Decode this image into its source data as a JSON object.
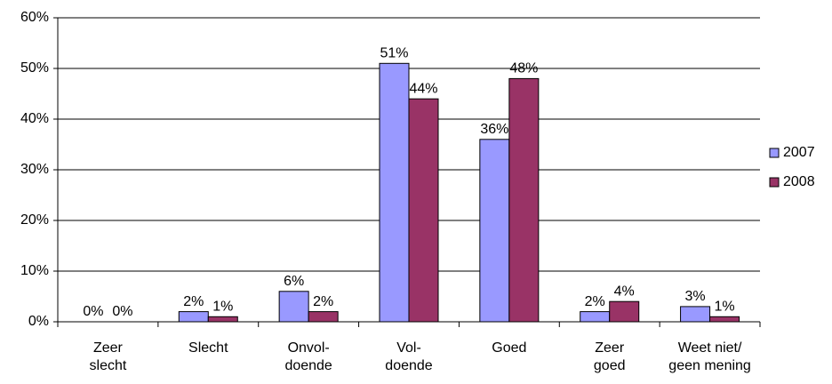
{
  "chart_data": {
    "type": "bar",
    "categories": [
      "Zeer\nslecht",
      "Slecht",
      "Onvol-\ndoende",
      "Vol-\ndoende",
      "Goed",
      "Zeer\ngoed",
      "Weet niet/\ngeen mening"
    ],
    "series": [
      {
        "name": "2007",
        "color": "#9999ff",
        "values": [
          0,
          2,
          6,
          51,
          36,
          2,
          3
        ],
        "value_labels": [
          "0%",
          "2%",
          "6%",
          "51%",
          "36%",
          "2%",
          "3%"
        ]
      },
      {
        "name": "2008",
        "color": "#993366",
        "values": [
          0,
          1,
          2,
          44,
          48,
          4,
          1
        ],
        "value_labels": [
          "0%",
          "1%",
          "2%",
          "44%",
          "48%",
          "4%",
          "1%"
        ]
      }
    ],
    "ylim": [
      0,
      60
    ],
    "yticks": [
      {
        "value": 0,
        "label": "0%"
      },
      {
        "value": 10,
        "label": "10%"
      },
      {
        "value": 20,
        "label": "20%"
      },
      {
        "value": 30,
        "label": "30%"
      },
      {
        "value": 40,
        "label": "40%"
      },
      {
        "value": 50,
        "label": "50%"
      },
      {
        "value": 60,
        "label": "60%"
      }
    ],
    "grid": true,
    "legend": "right"
  }
}
